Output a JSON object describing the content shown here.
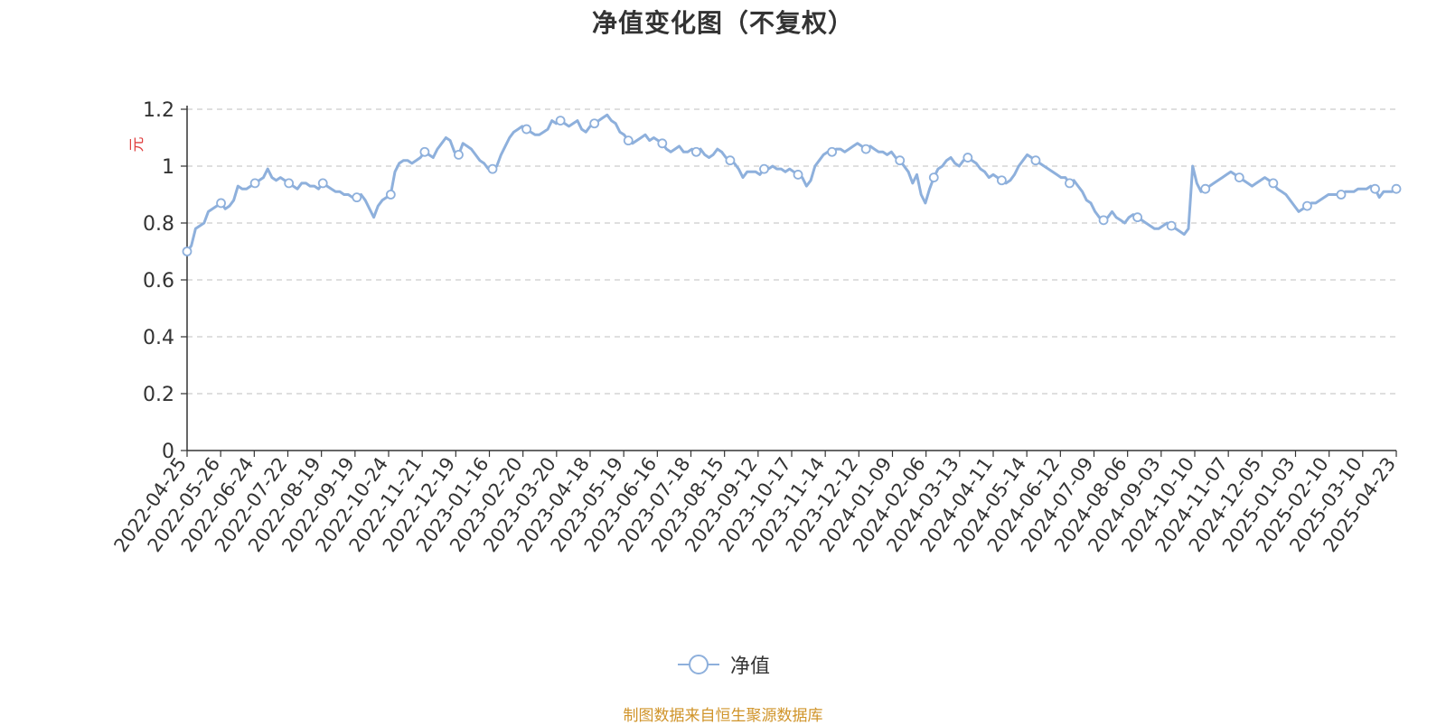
{
  "chart_data": {
    "type": "line",
    "title": "净值变化图（不复权）",
    "ylabel": "元",
    "ylim": [
      0,
      1.2
    ],
    "yticks": [
      "0",
      "0.2",
      "0.4",
      "0.6",
      "0.8",
      "1",
      "1.2"
    ],
    "x_ticks": [
      "2022-04-25",
      "2022-05-26",
      "2022-06-24",
      "2022-07-22",
      "2022-08-19",
      "2022-09-19",
      "2022-10-24",
      "2022-11-21",
      "2022-12-19",
      "2023-01-16",
      "2023-02-20",
      "2023-03-20",
      "2023-04-18",
      "2023-05-19",
      "2023-06-16",
      "2023-07-18",
      "2023-08-15",
      "2023-09-12",
      "2023-10-17",
      "2023-11-14",
      "2023-12-12",
      "2024-01-09",
      "2024-02-06",
      "2024-03-13",
      "2024-04-11",
      "2024-05-14",
      "2024-06-12",
      "2024-07-09",
      "2024-08-06",
      "2024-09-03",
      "2024-10-10",
      "2024-11-07",
      "2024-12-05",
      "2025-01-03",
      "2025-02-10",
      "2025-03-10",
      "2025-04-23"
    ],
    "grid": true,
    "legend_position": "bottom",
    "series": [
      {
        "name": "净值",
        "color": "#8eb0dc",
        "values": [
          0.7,
          0.72,
          0.78,
          0.79,
          0.8,
          0.84,
          0.85,
          0.86,
          0.87,
          0.85,
          0.86,
          0.88,
          0.93,
          0.92,
          0.92,
          0.93,
          0.94,
          0.95,
          0.96,
          0.99,
          0.96,
          0.95,
          0.96,
          0.95,
          0.94,
          0.93,
          0.92,
          0.94,
          0.94,
          0.93,
          0.93,
          0.92,
          0.94,
          0.93,
          0.92,
          0.91,
          0.91,
          0.9,
          0.9,
          0.89,
          0.89,
          0.9,
          0.88,
          0.85,
          0.82,
          0.86,
          0.88,
          0.89,
          0.9,
          0.98,
          1.01,
          1.02,
          1.02,
          1.01,
          1.02,
          1.03,
          1.05,
          1.04,
          1.03,
          1.06,
          1.08,
          1.1,
          1.09,
          1.05,
          1.04,
          1.08,
          1.07,
          1.06,
          1.04,
          1.02,
          1.01,
          0.99,
          0.99,
          1.0,
          1.04,
          1.07,
          1.1,
          1.12,
          1.13,
          1.14,
          1.13,
          1.12,
          1.11,
          1.11,
          1.12,
          1.13,
          1.16,
          1.15,
          1.16,
          1.15,
          1.14,
          1.15,
          1.16,
          1.13,
          1.12,
          1.14,
          1.15,
          1.16,
          1.17,
          1.18,
          1.16,
          1.15,
          1.12,
          1.11,
          1.09,
          1.08,
          1.09,
          1.1,
          1.11,
          1.09,
          1.1,
          1.09,
          1.08,
          1.06,
          1.05,
          1.06,
          1.07,
          1.05,
          1.05,
          1.06,
          1.05,
          1.06,
          1.04,
          1.03,
          1.04,
          1.06,
          1.05,
          1.03,
          1.02,
          1.01,
          0.99,
          0.96,
          0.98,
          0.98,
          0.98,
          0.97,
          0.99,
          0.99,
          1.0,
          0.99,
          0.99,
          0.98,
          0.99,
          0.98,
          0.97,
          0.96,
          0.93,
          0.95,
          1.0,
          1.02,
          1.04,
          1.05,
          1.05,
          1.06,
          1.06,
          1.05,
          1.06,
          1.07,
          1.08,
          1.07,
          1.06,
          1.07,
          1.06,
          1.05,
          1.05,
          1.04,
          1.05,
          1.03,
          1.02,
          1.0,
          0.98,
          0.94,
          0.97,
          0.9,
          0.87,
          0.92,
          0.96,
          0.99,
          1.0,
          1.02,
          1.03,
          1.01,
          1.0,
          1.02,
          1.03,
          1.02,
          1.01,
          0.99,
          0.98,
          0.96,
          0.97,
          0.96,
          0.95,
          0.94,
          0.95,
          0.97,
          1.0,
          1.02,
          1.04,
          1.03,
          1.02,
          1.01,
          1.0,
          0.99,
          0.98,
          0.97,
          0.96,
          0.96,
          0.94,
          0.95,
          0.93,
          0.91,
          0.88,
          0.87,
          0.84,
          0.82,
          0.81,
          0.82,
          0.84,
          0.82,
          0.81,
          0.8,
          0.82,
          0.83,
          0.82,
          0.81,
          0.8,
          0.79,
          0.78,
          0.78,
          0.79,
          0.8,
          0.79,
          0.78,
          0.77,
          0.76,
          0.78,
          1.0,
          0.94,
          0.91,
          0.92,
          0.93,
          0.94,
          0.95,
          0.96,
          0.97,
          0.98,
          0.97,
          0.96,
          0.95,
          0.94,
          0.93,
          0.94,
          0.95,
          0.96,
          0.95,
          0.94,
          0.92,
          0.91,
          0.9,
          0.88,
          0.86,
          0.84,
          0.85,
          0.86,
          0.87,
          0.87,
          0.88,
          0.89,
          0.9,
          0.9,
          0.9,
          0.9,
          0.91,
          0.91,
          0.91,
          0.92,
          0.92,
          0.92,
          0.93,
          0.92,
          0.89,
          0.91,
          0.91,
          0.91,
          0.92
        ]
      }
    ]
  },
  "legend": {
    "items": [
      "净值"
    ]
  },
  "footer": {
    "source": "制图数据来自恒生聚源数据库"
  }
}
